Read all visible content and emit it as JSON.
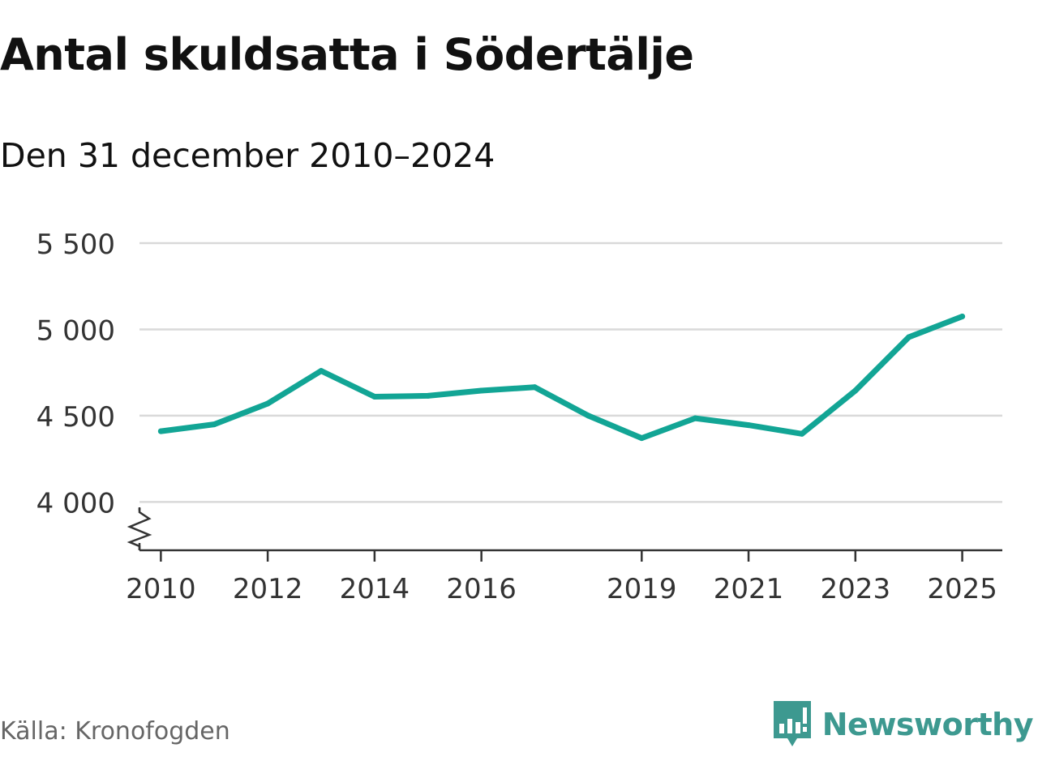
{
  "header": {
    "title": "Antal skuldsatta i Södertälje",
    "subtitle": "Den 31 december 2010–2024"
  },
  "footer": {
    "source": "Källa: Kronofogden",
    "brand": "Newsworthy"
  },
  "colors": {
    "line": "#12a595",
    "grid": "#d9d9d9",
    "axis": "#333333",
    "brand": "#3d9990"
  },
  "chart_data": {
    "type": "line",
    "title": "Antal skuldsatta i Södertälje",
    "subtitle": "Den 31 december 2010–2024",
    "xlabel": "",
    "ylabel": "",
    "grid": true,
    "legend": "none",
    "axis_break": true,
    "xlim": [
      2009.6,
      2025.75
    ],
    "ylim": [
      3720,
      5500
    ],
    "x_ticks": [
      2010,
      2012,
      2014,
      2016,
      2019,
      2021,
      2023,
      2025
    ],
    "y_ticks": [
      4000,
      4500,
      5000,
      5500
    ],
    "y_tick_labels": [
      "4 000",
      "4 500",
      "5 000",
      "5 500"
    ],
    "series": [
      {
        "name": "Antal skuldsatta",
        "x": [
          2010,
          2011,
          2012,
          2013,
          2014,
          2015,
          2016,
          2017,
          2018,
          2019,
          2020,
          2021,
          2022,
          2023,
          2024,
          2025
        ],
        "values": [
          4410,
          4450,
          4570,
          4760,
          4610,
          4615,
          4645,
          4665,
          4500,
          4370,
          4485,
          4445,
          4395,
          4645,
          4955,
          5075
        ]
      }
    ]
  }
}
